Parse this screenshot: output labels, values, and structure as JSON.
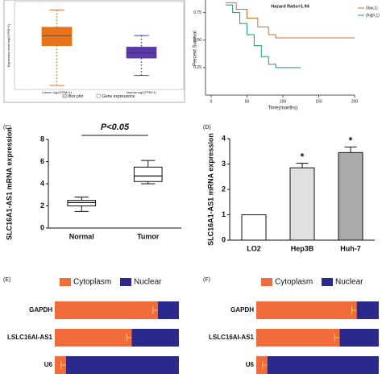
{
  "chart_data": [
    {
      "type": "box",
      "y_label": "Expression level log2(TPM+1)",
      "categories": [
        "Cancer log2(TPM+1)",
        "Normal log2(TPM+1)"
      ],
      "boxes": [
        {
          "min": 0.2,
          "q1": 5.0,
          "median": 6.2,
          "q3": 7.2,
          "max": 9.3
        },
        {
          "min": 1.4,
          "q1": 3.5,
          "median": 4.1,
          "q3": 4.8,
          "max": 6.2
        }
      ],
      "box_colors": [
        "#e8731a",
        "#5b3aa8"
      ],
      "ylim": [
        0,
        10
      ],
      "legend": [
        "Box plot",
        "Gene expressions"
      ]
    },
    {
      "type": "survival",
      "annotation": "Hazard Ratio=1.94",
      "x_label": "Time(months)",
      "y_label": "Percent Survival",
      "xlim": [
        0,
        200
      ],
      "xticks": [
        0,
        50,
        100,
        150,
        200
      ],
      "ylim": [
        0,
        0.85
      ],
      "yticks": [
        {
          "value": 0.25,
          "label": "0.25"
        },
        {
          "value": 0.5,
          "label": "0.50"
        },
        {
          "value": 0.75,
          "label": "0.75"
        }
      ],
      "series": [
        {
          "name": "(low,1)",
          "color": "#c8742a",
          "x": [
            20,
            35,
            50,
            65,
            80,
            90,
            200
          ],
          "values": [
            0.84,
            0.78,
            0.7,
            0.62,
            0.55,
            0.52,
            0.52
          ]
        },
        {
          "name": "(high,1)",
          "color": "#1a9a7a",
          "x": [
            20,
            30,
            40,
            50,
            60,
            70,
            80,
            90,
            125
          ],
          "values": [
            0.82,
            0.75,
            0.65,
            0.55,
            0.45,
            0.35,
            0.28,
            0.25,
            0.25
          ]
        }
      ]
    },
    {
      "type": "box",
      "label": "(C)",
      "annotation": "P<0.05",
      "y_label": "SLC16A1-AS1 mRNA expression",
      "categories": [
        "Normal",
        "Tumor"
      ],
      "boxes": [
        {
          "min": 1.5,
          "q1": 2.0,
          "median": 2.3,
          "q3": 2.5,
          "max": 2.8
        },
        {
          "min": 4.0,
          "q1": 4.2,
          "median": 4.7,
          "q3": 5.5,
          "max": 6.1
        }
      ],
      "box_colors": [
        "#ffffff",
        "#ffffff"
      ],
      "ylim": [
        0,
        8
      ],
      "yticks": [
        0,
        2,
        4,
        6,
        8
      ]
    },
    {
      "type": "bar",
      "label": "(D)",
      "y_label": "SLC16A1-AS1 mRNA expression",
      "categories": [
        "LO2",
        "Hep3B",
        "Huh-7"
      ],
      "values": [
        1,
        2.85,
        3.45
      ],
      "errors": [
        0,
        0.18,
        0.22
      ],
      "colors": [
        "#ffffff",
        "#e0e0e0",
        "#aaaaaa"
      ],
      "significance": [
        null,
        "*",
        "*"
      ],
      "ylim": [
        0,
        4
      ],
      "yticks": [
        0,
        1,
        2,
        3,
        4
      ]
    },
    {
      "type": "stacked-hbar",
      "label": "(E)",
      "categories": [
        "GAPDH",
        "LSLC16AI-AS1",
        "U6"
      ],
      "xlim": [
        0,
        100
      ],
      "series": [
        {
          "name": "Cytoplasm",
          "color": "#f26b3a",
          "values": [
            83,
            62,
            9
          ],
          "errors": [
            4,
            4,
            4
          ]
        },
        {
          "name": "Nuclear",
          "color": "#2b2a8c",
          "values": [
            17,
            38,
            91
          ]
        }
      ]
    },
    {
      "type": "stacked-hbar",
      "label": "(F)",
      "categories": [
        "GAPDH",
        "LSLC16AI-AS1",
        "U6"
      ],
      "xlim": [
        0,
        100
      ],
      "series": [
        {
          "name": "Cytoplasm",
          "color": "#f26b3a",
          "values": [
            82,
            68,
            9
          ],
          "errors": [
            4,
            4,
            4
          ]
        },
        {
          "name": "Nuclear",
          "color": "#2b2a8c",
          "values": [
            18,
            32,
            91
          ]
        }
      ]
    }
  ]
}
